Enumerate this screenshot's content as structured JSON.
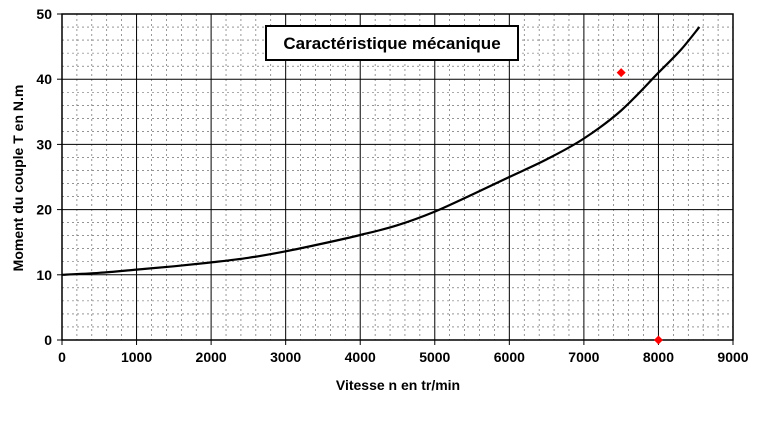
{
  "chart_data": {
    "type": "scatter",
    "title": "Caractéristique mécanique",
    "xlabel": "Vitesse n en tr/min",
    "ylabel": "Moment du couple T en N.m",
    "xlim": [
      0,
      9000
    ],
    "ylim": [
      0,
      50
    ],
    "x_ticks": [
      "0",
      "1000",
      "2000",
      "3000",
      "4000",
      "5000",
      "6000",
      "7000",
      "8000",
      "9000"
    ],
    "y_ticks": [
      "0",
      "10",
      "20",
      "30",
      "40",
      "50"
    ],
    "grid": true,
    "minor_grid": "dashed",
    "legend": "none",
    "series": [
      {
        "kind": "line",
        "color": "#000000",
        "x": [
          0,
          500,
          1000,
          1500,
          2000,
          2500,
          3000,
          3500,
          4000,
          4500,
          5000,
          5500,
          6000,
          6500,
          7000,
          7500,
          8000,
          8300,
          8550
        ],
        "y": [
          10,
          10.3,
          10.8,
          11.3,
          11.9,
          12.6,
          13.6,
          14.8,
          16.1,
          17.6,
          19.7,
          22.3,
          25.0,
          27.7,
          30.9,
          35.2,
          41.0,
          44.5,
          48.0
        ]
      },
      {
        "kind": "markers",
        "marker": "diamond",
        "color": "#ff0000",
        "x": [
          7500,
          8000
        ],
        "y": [
          41,
          0
        ]
      }
    ]
  }
}
